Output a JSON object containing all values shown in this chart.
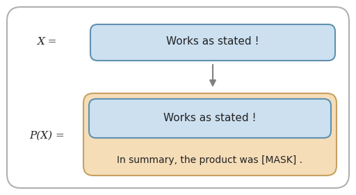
{
  "bg_color": "#ffffff",
  "outer_box_edge": "#b0b0b0",
  "blue_box_face": "#cce0f0",
  "blue_box_edge": "#6090b0",
  "orange_box_face": "#f5ddb8",
  "orange_box_edge": "#c8a060",
  "arrow_color": "#808080",
  "text_color": "#222222",
  "label_x": "X =",
  "label_px": "P(X) =",
  "top_box_text": "Works as stated !",
  "inner_box_text": "Works as stated !",
  "bottom_text": "In summary, the product was [MASK] .",
  "font_size_label": 11,
  "font_size_box": 11,
  "font_size_bottom": 10
}
